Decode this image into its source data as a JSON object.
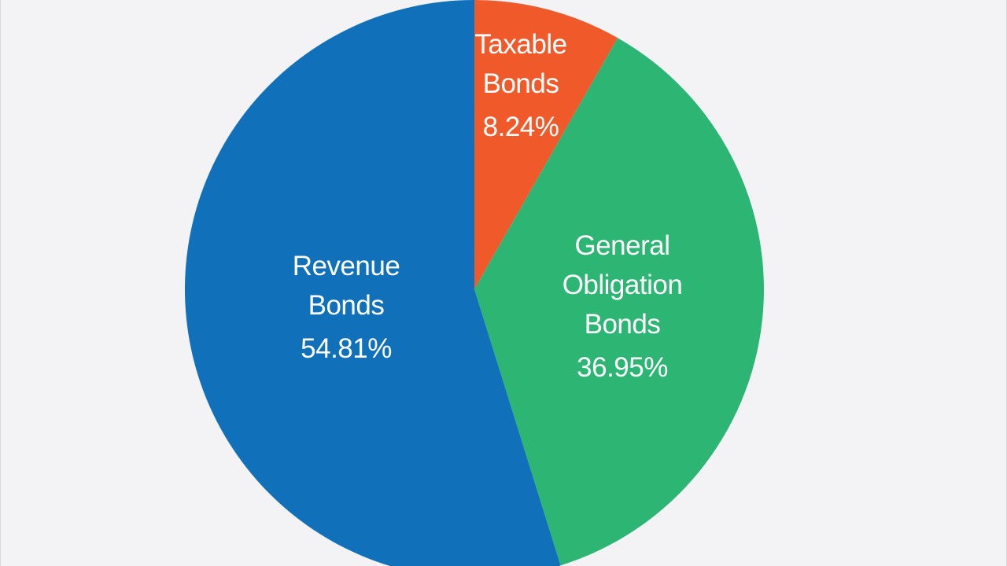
{
  "chart_data": {
    "type": "pie",
    "title": "",
    "slices": [
      {
        "label": "Taxable Bonds",
        "label_lines": [
          "Taxable",
          "Bonds"
        ],
        "value": 8.24,
        "value_label": "8.24%",
        "color": "#f05a2b"
      },
      {
        "label": "General Obligation Bonds",
        "label_lines": [
          "General",
          "Obligation",
          "Bonds"
        ],
        "value": 36.95,
        "value_label": "36.95%",
        "color": "#2db673"
      },
      {
        "label": "Revenue Bonds",
        "label_lines": [
          "Revenue",
          "Bonds"
        ],
        "value": 54.81,
        "value_label": "54.81%",
        "color": "#1170ba"
      }
    ],
    "start_angle_deg": 0,
    "direction": "clockwise",
    "legend": "none",
    "background_color": "#f3f3f5"
  }
}
